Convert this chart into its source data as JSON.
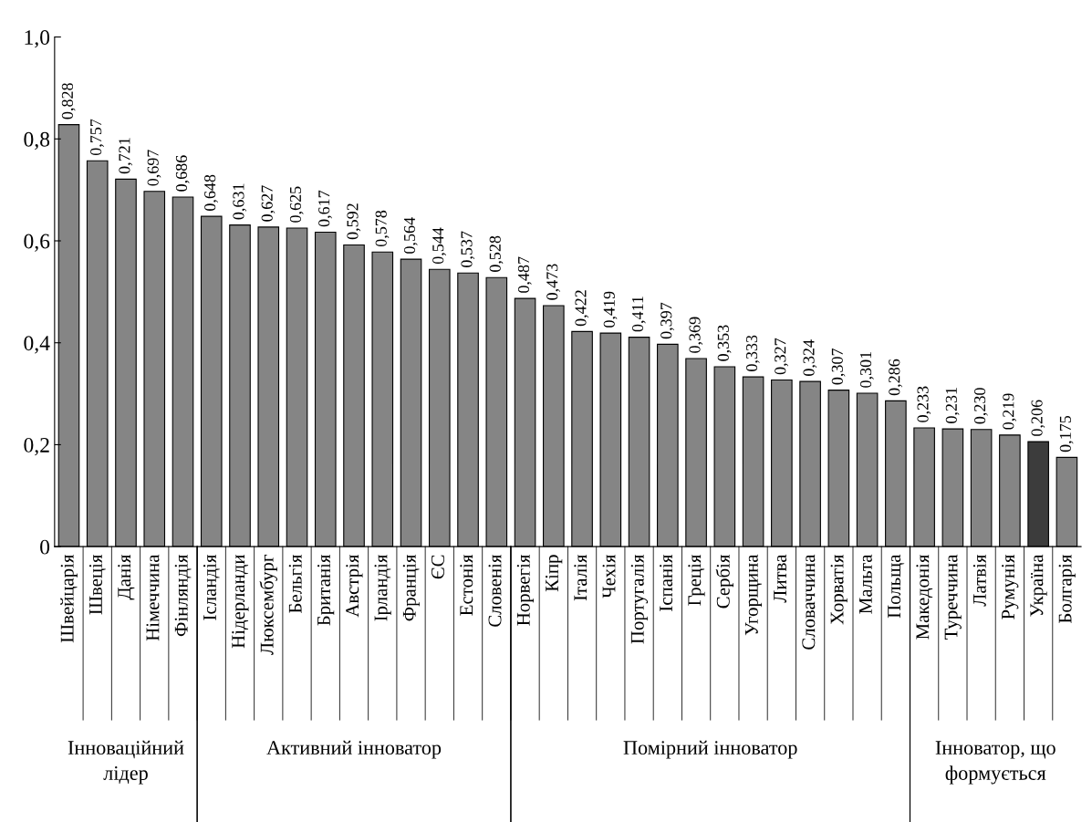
{
  "chart_data": {
    "type": "bar",
    "categories": [
      "Швейцарія",
      "Швеція",
      "Данія",
      "Німеччина",
      "Фінляндія",
      "Ісландія",
      "Нідерланди",
      "Люксембург",
      "Бельгія",
      "Британія",
      "Австрія",
      "Ірландія",
      "Франція",
      "ЄС",
      "Естонія",
      "Словенія",
      "Норвегія",
      "Кіпр",
      "Італія",
      "Чехія",
      "Португалія",
      "Іспанія",
      "Греція",
      "Сербія",
      "Угорщина",
      "Литва",
      "Словаччина",
      "Хорватія",
      "Мальта",
      "Польща",
      "Македонія",
      "Туреччина",
      "Латвія",
      "Румунія",
      "Україна",
      "Болгарія"
    ],
    "values": [
      0.828,
      0.757,
      0.721,
      0.697,
      0.686,
      0.648,
      0.631,
      0.627,
      0.625,
      0.617,
      0.592,
      0.578,
      0.564,
      0.544,
      0.537,
      0.528,
      0.487,
      0.473,
      0.422,
      0.419,
      0.411,
      0.397,
      0.369,
      0.353,
      0.333,
      0.327,
      0.324,
      0.307,
      0.301,
      0.286,
      0.233,
      0.231,
      0.23,
      0.219,
      0.206,
      0.175
    ],
    "value_labels": [
      "0,828",
      "0,757",
      "0,721",
      "0,697",
      "0,686",
      "0,648",
      "0,631",
      "0,627",
      "0,625",
      "0,617",
      "0,592",
      "0,578",
      "0,564",
      "0,544",
      "0,537",
      "0,528",
      "0,487",
      "0,473",
      "0,422",
      "0,419",
      "0,411",
      "0,397",
      "0,369",
      "0,353",
      "0,333",
      "0,327",
      "0,324",
      "0,307",
      "0,301",
      "0,286",
      "0,233",
      "0,231",
      "0,230",
      "0,219",
      "0,206",
      "0,175"
    ],
    "colors": [
      "#858585",
      "#858585",
      "#858585",
      "#858585",
      "#858585",
      "#858585",
      "#858585",
      "#858585",
      "#858585",
      "#858585",
      "#858585",
      "#858585",
      "#858585",
      "#858585",
      "#858585",
      "#858585",
      "#858585",
      "#858585",
      "#858585",
      "#858585",
      "#858585",
      "#858585",
      "#858585",
      "#858585",
      "#858585",
      "#858585",
      "#858585",
      "#858585",
      "#858585",
      "#858585",
      "#858585",
      "#858585",
      "#858585",
      "#858585",
      "#3c3c3c",
      "#858585"
    ],
    "ylim": [
      0,
      1
    ],
    "yticks": [
      {
        "value": 0,
        "label": "0"
      },
      {
        "value": 0.2,
        "label": "0,2"
      },
      {
        "value": 0.4,
        "label": "0,4"
      },
      {
        "value": 0.6,
        "label": "0,6"
      },
      {
        "value": 0.8,
        "label": "0,8"
      },
      {
        "value": 1,
        "label": "1,0"
      }
    ],
    "grid": false,
    "legend": false,
    "annotations": [
      "Інноваційний\nлідер",
      "Активний інноватор",
      "Помірний інноватор",
      "Інноватор, що\nформується"
    ]
  }
}
